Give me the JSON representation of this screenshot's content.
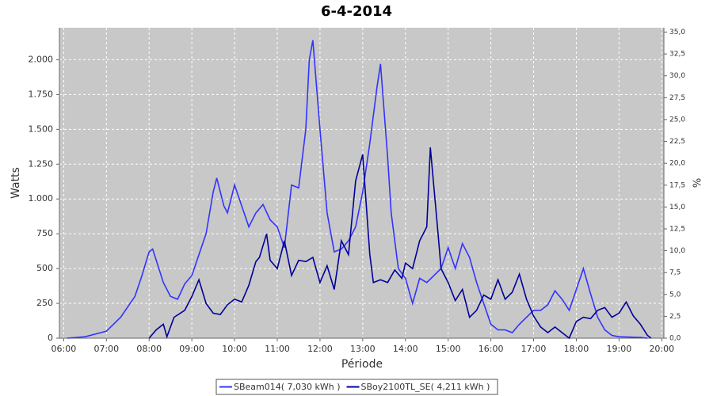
{
  "chart_data": {
    "type": "line",
    "title": "6-4-2014",
    "x_label": "Période",
    "y_label": "Watts",
    "y2_label": "%",
    "grid": true,
    "xlim": [
      "05:54",
      "20:03"
    ],
    "xticks": [
      "06:00",
      "07:00",
      "08:00",
      "09:00",
      "10:00",
      "11:00",
      "12:00",
      "13:00",
      "14:00",
      "15:00",
      "16:00",
      "17:00",
      "18:00",
      "19:00",
      "20:00"
    ],
    "ylim": [
      0,
      2230
    ],
    "yticks": [
      0,
      250,
      500,
      750,
      {
        "value": 1000,
        "label": "1.000"
      },
      {
        "value": 1250,
        "label": "1.250"
      },
      {
        "value": 1500,
        "label": "1.500"
      },
      {
        "value": 1750,
        "label": "1.750"
      },
      {
        "value": 2000,
        "label": "2.000"
      }
    ],
    "y2lim": [
      0,
      35.5
    ],
    "y2ticks": [
      {
        "value": 0,
        "label": "0,0"
      },
      {
        "value": 2.5,
        "label": "2,5"
      },
      {
        "value": 5,
        "label": "5,0"
      },
      {
        "value": 7.5,
        "label": "7,5"
      },
      {
        "value": 10,
        "label": "10,0"
      },
      {
        "value": 12.5,
        "label": "12,5"
      },
      {
        "value": 15,
        "label": "15,0"
      },
      {
        "value": 17.5,
        "label": "17,5"
      },
      {
        "value": 20,
        "label": "20,0"
      },
      {
        "value": 22.5,
        "label": "22,5"
      },
      {
        "value": 25,
        "label": "25,0"
      },
      {
        "value": 27.5,
        "label": "27,5"
      },
      {
        "value": 30,
        "label": "30,0"
      },
      {
        "value": 32.5,
        "label": "32,5"
      },
      {
        "value": 35,
        "label": "35,0"
      }
    ],
    "series": [
      {
        "name": "SBeam014( 7,030 kWh )",
        "color": "#3333ff",
        "x": [
          "06:05",
          "06:30",
          "07:00",
          "07:20",
          "07:40",
          "07:50",
          "08:00",
          "08:05",
          "08:20",
          "08:30",
          "08:40",
          "08:50",
          "09:00",
          "09:10",
          "09:20",
          "09:30",
          "09:35",
          "09:45",
          "09:50",
          "10:00",
          "10:10",
          "10:20",
          "10:30",
          "10:40",
          "10:50",
          "11:00",
          "11:10",
          "11:20",
          "11:30",
          "11:40",
          "11:45",
          "11:50",
          "12:00",
          "12:10",
          "12:20",
          "12:30",
          "12:40",
          "12:50",
          "13:00",
          "13:10",
          "13:20",
          "13:25",
          "13:35",
          "13:40",
          "13:50",
          "14:00",
          "14:10",
          "14:20",
          "14:30",
          "14:40",
          "14:50",
          "15:00",
          "15:10",
          "15:20",
          "15:30",
          "15:40",
          "15:50",
          "16:00",
          "16:10",
          "16:20",
          "16:30",
          "16:40",
          "16:50",
          "17:00",
          "17:10",
          "17:20",
          "17:30",
          "17:40",
          "17:50",
          "18:00",
          "18:10",
          "18:20",
          "18:30",
          "18:40",
          "18:50",
          "19:00",
          "19:30",
          "19:40"
        ],
        "values": [
          0,
          10,
          50,
          150,
          300,
          450,
          620,
          640,
          400,
          300,
          280,
          390,
          450,
          600,
          750,
          1050,
          1150,
          950,
          900,
          1100,
          950,
          800,
          900,
          960,
          850,
          800,
          650,
          1100,
          1080,
          1500,
          2000,
          2140,
          1500,
          900,
          620,
          640,
          700,
          800,
          1050,
          1400,
          1800,
          1970,
          1300,
          900,
          500,
          430,
          250,
          430,
          400,
          450,
          500,
          650,
          500,
          680,
          580,
          400,
          250,
          100,
          60,
          60,
          40,
          100,
          150,
          200,
          200,
          240,
          340,
          280,
          200,
          350,
          500,
          320,
          150,
          60,
          20,
          10,
          5,
          0
        ]
      },
      {
        "name": "SBoy2100TL_SE( 4,211 kWh )",
        "color": "#000099",
        "x": [
          "08:00",
          "08:10",
          "08:20",
          "08:25",
          "08:35",
          "08:50",
          "09:00",
          "09:10",
          "09:20",
          "09:30",
          "09:40",
          "09:50",
          "10:00",
          "10:10",
          "10:20",
          "10:30",
          "10:35",
          "10:45",
          "10:50",
          "11:00",
          "11:10",
          "11:20",
          "11:30",
          "11:40",
          "11:50",
          "12:00",
          "12:10",
          "12:20",
          "12:30",
          "12:40",
          "12:50",
          "13:00",
          "13:10",
          "13:15",
          "13:25",
          "13:35",
          "13:45",
          "13:55",
          "14:00",
          "14:10",
          "14:20",
          "14:30",
          "14:35",
          "14:45",
          "14:50",
          "15:00",
          "15:10",
          "15:20",
          "15:30",
          "15:40",
          "15:50",
          "16:00",
          "16:10",
          "16:20",
          "16:30",
          "16:40",
          "16:50",
          "17:00",
          "17:10",
          "17:20",
          "17:30",
          "17:40",
          "17:50",
          "18:00",
          "18:10",
          "18:20",
          "18:30",
          "18:40",
          "18:50",
          "19:00",
          "19:10",
          "19:20",
          "19:30",
          "19:40",
          "19:45"
        ],
        "values": [
          0,
          60,
          100,
          10,
          150,
          200,
          300,
          420,
          250,
          180,
          170,
          240,
          280,
          260,
          380,
          550,
          580,
          750,
          560,
          500,
          700,
          450,
          560,
          550,
          580,
          400,
          520,
          350,
          700,
          600,
          1130,
          1320,
          600,
          400,
          420,
          400,
          490,
          430,
          540,
          500,
          700,
          800,
          1370,
          800,
          500,
          400,
          270,
          350,
          150,
          200,
          310,
          280,
          420,
          280,
          330,
          460,
          280,
          160,
          80,
          40,
          80,
          40,
          0,
          120,
          150,
          140,
          200,
          220,
          150,
          180,
          260,
          160,
          100,
          20,
          0
        ]
      }
    ]
  }
}
